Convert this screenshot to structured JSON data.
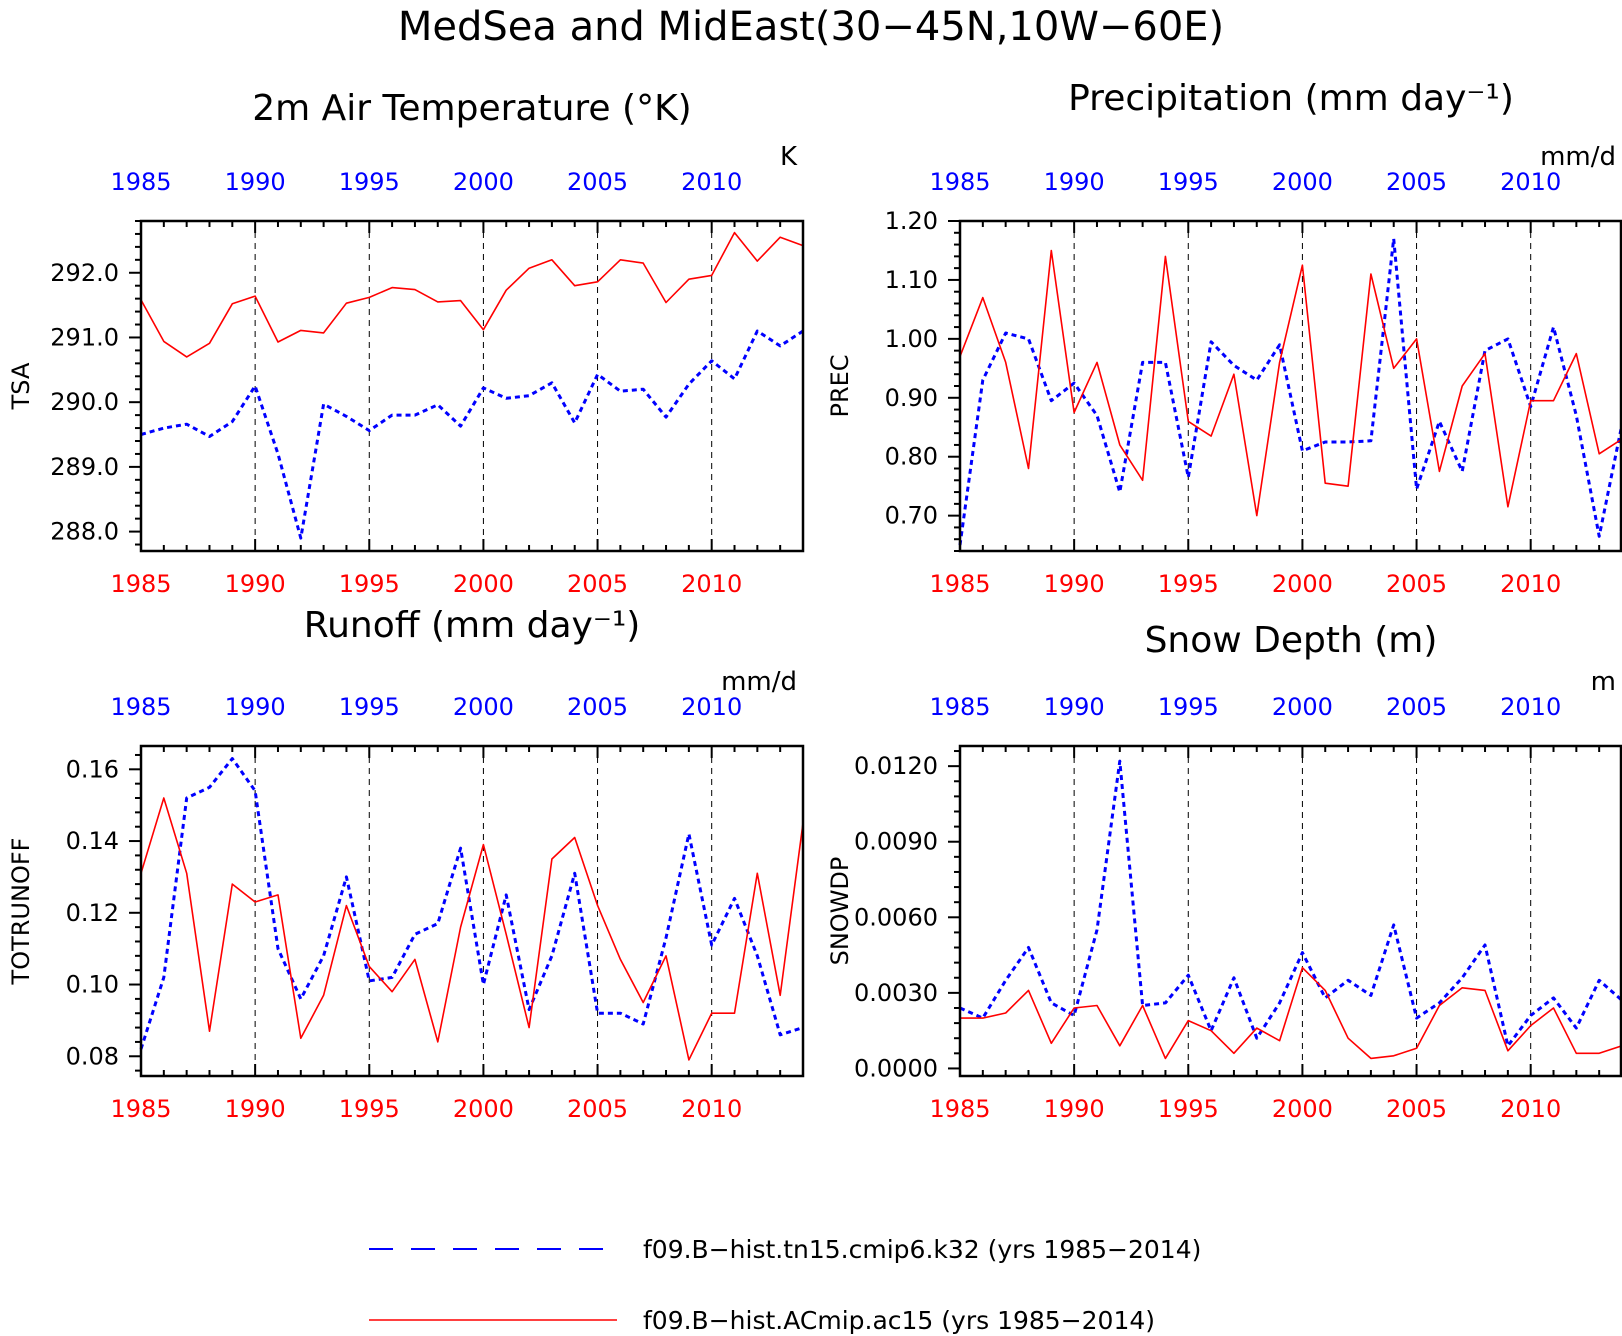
{
  "figure": {
    "title": "MedSea and MidEast(30−45N,10W−60E)"
  },
  "colors": {
    "model_b": "#0000ff",
    "model_a": "#ff0000",
    "axis": "#000000",
    "vline": "#000000"
  },
  "legend": [
    {
      "label": "f09.B−hist.tn15.cmip6.k32 (yrs 1985−2014)",
      "color": "#0000ff",
      "style": "dashed"
    },
    {
      "label": "f09.B−hist.ACmip.ac15 (yrs 1985−2014)",
      "color": "#ff0000",
      "style": "solid"
    }
  ],
  "chart_data": [
    {
      "type": "line",
      "title": "2m Air Temperature (°K)",
      "unit": "K",
      "ylabel": "TSA",
      "xlim": [
        1985,
        2014
      ],
      "ylim": [
        287.7,
        292.8
      ],
      "yticks": [
        "288.0",
        "289.0",
        "290.0",
        "291.0",
        "292.0"
      ],
      "ytick_values": [
        288,
        289,
        290,
        291,
        292
      ],
      "xticks": [
        "1985",
        "1990",
        "1995",
        "2000",
        "2005",
        "2010"
      ],
      "vlines": [
        1990,
        1995,
        2000,
        2005,
        2010
      ],
      "x": [
        1985,
        1986,
        1987,
        1988,
        1989,
        1990,
        1991,
        1992,
        1993,
        1994,
        1995,
        1996,
        1997,
        1998,
        1999,
        2000,
        2001,
        2002,
        2003,
        2004,
        2005,
        2006,
        2007,
        2008,
        2009,
        2010,
        2011,
        2012,
        2013,
        2014
      ],
      "series": [
        {
          "name": "f09.B−hist.tn15.cmip6.k32 (yrs 1985−2014)",
          "color": "#0000ff",
          "style": "dashed",
          "values": [
            289.5,
            289.6,
            289.66,
            289.47,
            289.7,
            290.25,
            289.2,
            287.9,
            289.97,
            289.78,
            289.56,
            289.8,
            289.8,
            289.96,
            289.63,
            290.22,
            290.06,
            290.1,
            290.3,
            289.68,
            290.43,
            290.17,
            290.2,
            289.77,
            290.28,
            290.64,
            290.36,
            291.1,
            290.87,
            291.1
          ]
        },
        {
          "name": "f09.B−hist.ACmip.ac15 (yrs 1985−2014)",
          "color": "#ff0000",
          "style": "solid",
          "values": [
            291.58,
            290.94,
            290.7,
            290.91,
            291.52,
            291.64,
            290.93,
            291.11,
            291.07,
            291.53,
            291.62,
            291.77,
            291.74,
            291.55,
            291.57,
            291.12,
            291.73,
            292.07,
            292.2,
            291.8,
            291.86,
            292.2,
            292.15,
            291.54,
            291.9,
            291.96,
            292.62,
            292.18,
            292.55,
            292.42
          ]
        }
      ]
    },
    {
      "type": "line",
      "title": "Precipitation (mm day⁻¹)",
      "unit": "mm/d",
      "ylabel": "PREC",
      "xlim": [
        1985,
        2014
      ],
      "ylim": [
        0.64,
        1.2
      ],
      "yticks": [
        "0.70",
        "0.80",
        "0.90",
        "1.00",
        "1.10",
        "1.20"
      ],
      "ytick_values": [
        0.7,
        0.8,
        0.9,
        1.0,
        1.1,
        1.2
      ],
      "xticks": [
        "1985",
        "1990",
        "1995",
        "2000",
        "2005",
        "2010"
      ],
      "vlines": [
        1990,
        1995,
        2000,
        2005,
        2010
      ],
      "x": [
        1985,
        1986,
        1987,
        1988,
        1989,
        1990,
        1991,
        1992,
        1993,
        1994,
        1995,
        1996,
        1997,
        1998,
        1999,
        2000,
        2001,
        2002,
        2003,
        2004,
        2005,
        2006,
        2007,
        2008,
        2009,
        2010,
        2011,
        2012,
        2013,
        2014
      ],
      "series": [
        {
          "name": "f09.B−hist.tn15.cmip6.k32 (yrs 1985−2014)",
          "color": "#0000ff",
          "style": "dashed",
          "values": [
            0.65,
            0.93,
            1.01,
            1.0,
            0.895,
            0.925,
            0.87,
            0.74,
            0.96,
            0.96,
            0.765,
            0.995,
            0.955,
            0.93,
            0.99,
            0.81,
            0.825,
            0.825,
            0.827,
            1.17,
            0.745,
            0.86,
            0.775,
            0.98,
            1.0,
            0.885,
            1.02,
            0.87,
            0.665,
            0.855
          ]
        },
        {
          "name": "f09.B−hist.ACmip.ac15 (yrs 1985−2014)",
          "color": "#ff0000",
          "style": "solid",
          "values": [
            0.97,
            1.07,
            0.96,
            0.78,
            1.15,
            0.875,
            0.96,
            0.82,
            0.76,
            1.14,
            0.86,
            0.835,
            0.94,
            0.7,
            0.96,
            1.125,
            0.755,
            0.75,
            1.11,
            0.95,
            1.0,
            0.775,
            0.92,
            0.975,
            0.715,
            0.895,
            0.895,
            0.975,
            0.805,
            0.83
          ]
        }
      ]
    },
    {
      "type": "line",
      "title": "Runoff (mm day⁻¹)",
      "unit": "mm/d",
      "ylabel": "TOTRUNOFF",
      "xlim": [
        1985,
        2014
      ],
      "ylim": [
        0.0745,
        0.1665
      ],
      "yticks": [
        "0.08",
        "0.10",
        "0.12",
        "0.14",
        "0.16"
      ],
      "ytick_values": [
        0.08,
        0.1,
        0.12,
        0.14,
        0.16
      ],
      "xticks": [
        "1985",
        "1990",
        "1995",
        "2000",
        "2005",
        "2010"
      ],
      "vlines": [
        1990,
        1995,
        2000,
        2005,
        2010
      ],
      "x": [
        1985,
        1986,
        1987,
        1988,
        1989,
        1990,
        1991,
        1992,
        1993,
        1994,
        1995,
        1996,
        1997,
        1998,
        1999,
        2000,
        2001,
        2002,
        2003,
        2004,
        2005,
        2006,
        2007,
        2008,
        2009,
        2010,
        2011,
        2012,
        2013,
        2014
      ],
      "series": [
        {
          "name": "f09.B−hist.tn15.cmip6.k32 (yrs 1985−2014)",
          "color": "#0000ff",
          "style": "dashed",
          "values": [
            0.082,
            0.102,
            0.152,
            0.155,
            0.163,
            0.154,
            0.11,
            0.096,
            0.108,
            0.13,
            0.101,
            0.102,
            0.114,
            0.117,
            0.138,
            0.1,
            0.125,
            0.093,
            0.108,
            0.131,
            0.092,
            0.092,
            0.089,
            0.113,
            0.142,
            0.111,
            0.124,
            0.108,
            0.086,
            0.088
          ]
        },
        {
          "name": "f09.B−hist.ACmip.ac15 (yrs 1985−2014)",
          "color": "#ff0000",
          "style": "solid",
          "values": [
            0.131,
            0.152,
            0.131,
            0.087,
            0.128,
            0.123,
            0.125,
            0.085,
            0.097,
            0.122,
            0.105,
            0.098,
            0.107,
            0.084,
            0.116,
            0.139,
            0.114,
            0.088,
            0.135,
            0.141,
            0.122,
            0.107,
            0.095,
            0.108,
            0.079,
            0.092,
            0.092,
            0.131,
            0.097,
            0.145
          ]
        }
      ]
    },
    {
      "type": "line",
      "title": "Snow Depth (m)",
      "unit": "m",
      "ylabel": "SNOWDP",
      "xlim": [
        1985,
        2014
      ],
      "ylim": [
        -0.0003,
        0.0128
      ],
      "yticks": [
        "0.0000",
        "0.0030",
        "0.0060",
        "0.0090",
        "0.0120"
      ],
      "ytick_values": [
        0.0,
        0.003,
        0.006,
        0.009,
        0.012
      ],
      "xticks": [
        "1985",
        "1990",
        "1995",
        "2000",
        "2005",
        "2010"
      ],
      "vlines": [
        1990,
        1995,
        2000,
        2005,
        2010
      ],
      "x": [
        1985,
        1986,
        1987,
        1988,
        1989,
        1990,
        1991,
        1992,
        1993,
        1994,
        1995,
        1996,
        1997,
        1998,
        1999,
        2000,
        2001,
        2002,
        2003,
        2004,
        2005,
        2006,
        2007,
        2008,
        2009,
        2010,
        2011,
        2012,
        2013,
        2014
      ],
      "series": [
        {
          "name": "f09.B−hist.tn15.cmip6.k32 (yrs 1985−2014)",
          "color": "#0000ff",
          "style": "dashed",
          "values": [
            0.0024,
            0.002,
            0.0035,
            0.0048,
            0.0026,
            0.0021,
            0.0055,
            0.0122,
            0.0025,
            0.0026,
            0.0037,
            0.0015,
            0.0036,
            0.0012,
            0.0026,
            0.0046,
            0.0028,
            0.0035,
            0.0029,
            0.0057,
            0.002,
            0.0026,
            0.0036,
            0.0049,
            0.0009,
            0.0021,
            0.0028,
            0.0016,
            0.0035,
            0.0027
          ]
        },
        {
          "name": "f09.B−hist.ACmip.ac15 (yrs 1985−2014)",
          "color": "#ff0000",
          "style": "solid",
          "values": [
            0.002,
            0.002,
            0.0022,
            0.0031,
            0.001,
            0.0024,
            0.0025,
            0.0009,
            0.0025,
            0.0004,
            0.0019,
            0.0015,
            0.0006,
            0.0016,
            0.0011,
            0.004,
            0.0031,
            0.0012,
            0.0004,
            0.0005,
            0.0008,
            0.0025,
            0.0032,
            0.0031,
            0.0007,
            0.0017,
            0.0024,
            0.0006,
            0.0006,
            0.0009
          ]
        }
      ]
    }
  ]
}
